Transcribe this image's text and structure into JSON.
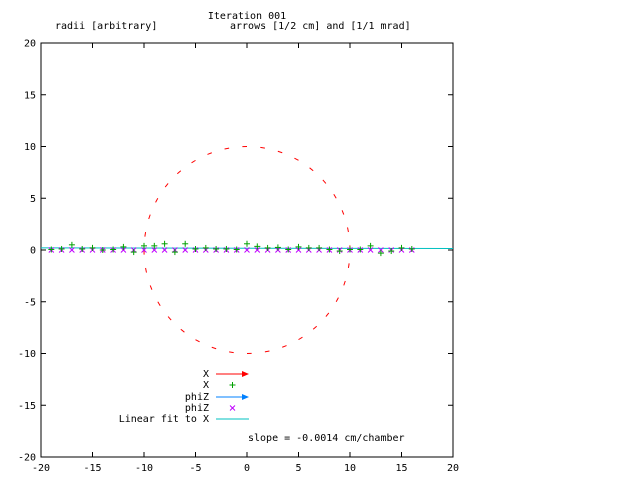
{
  "chart_data": {
    "type": "scatter",
    "title": "Iteration 001",
    "subtitle_left": "radii [arbitrary]",
    "subtitle_right": "arrows [1/2 cm] and [1/1 mrad]",
    "xlim": [
      -20,
      20
    ],
    "ylim": [
      -20,
      20
    ],
    "x_ticks": [
      -20,
      -15,
      -10,
      -5,
      0,
      5,
      10,
      15,
      20
    ],
    "y_ticks": [
      -20,
      -15,
      -10,
      -5,
      0,
      5,
      10,
      15,
      20
    ],
    "x_tick_labels": [
      "-20",
      "-15",
      "-10",
      "-5",
      "0",
      "5",
      "10",
      "15",
      "20"
    ],
    "y_tick_labels": [
      "-20",
      "-15",
      "-10",
      "-5",
      "0",
      "5",
      "10",
      "15",
      "20"
    ],
    "grid": false,
    "legend_placement": "bottom-left",
    "legend": [
      {
        "label": "X",
        "marker": "arrow",
        "color": "#ff0000"
      },
      {
        "label": "X",
        "marker": "plus",
        "color": "#00a000"
      },
      {
        "label": "phiZ",
        "marker": "arrow",
        "color": "#0080ff"
      },
      {
        "label": "phiZ",
        "marker": "cross",
        "color": "#c000ff"
      },
      {
        "label": "Linear fit to X",
        "marker": "line",
        "color": "#00c0c0"
      }
    ],
    "annotation": "slope = -0.0014 cm/chamber",
    "series": [
      {
        "name": "X",
        "marker": "plus",
        "color": "#00a000",
        "points": [
          [
            -19,
            0.05
          ],
          [
            -18,
            0.1
          ],
          [
            -17,
            0.5
          ],
          [
            -16,
            0.1
          ],
          [
            -15,
            0.2
          ],
          [
            -14,
            0.0
          ],
          [
            -13,
            0.05
          ],
          [
            -12,
            0.3
          ],
          [
            -11,
            -0.2
          ],
          [
            -10,
            0.4
          ],
          [
            -9,
            0.4
          ],
          [
            -8,
            0.6
          ],
          [
            -7,
            -0.2
          ],
          [
            -6,
            0.6
          ],
          [
            -5,
            0.1
          ],
          [
            -4,
            0.2
          ],
          [
            -3,
            0.1
          ],
          [
            -2,
            0.1
          ],
          [
            -1,
            0.05
          ],
          [
            0,
            0.6
          ],
          [
            1,
            0.35
          ],
          [
            2,
            0.2
          ],
          [
            3,
            0.25
          ],
          [
            4,
            0.05
          ],
          [
            5,
            0.3
          ],
          [
            6,
            0.2
          ],
          [
            7,
            0.2
          ],
          [
            8,
            0.05
          ],
          [
            9,
            -0.1
          ],
          [
            10,
            0.05
          ],
          [
            11,
            0.05
          ],
          [
            12,
            0.4
          ],
          [
            13,
            -0.3
          ],
          [
            14,
            -0.1
          ],
          [
            15,
            0.2
          ],
          [
            16,
            0.1
          ]
        ]
      },
      {
        "name": "phiZ",
        "marker": "cross",
        "color": "#c000ff",
        "points": [
          [
            -19,
            0
          ],
          [
            -18,
            0
          ],
          [
            -17,
            0
          ],
          [
            -16,
            0
          ],
          [
            -15,
            0
          ],
          [
            -14,
            0
          ],
          [
            -13,
            0
          ],
          [
            -12,
            0
          ],
          [
            -11,
            0
          ],
          [
            -10,
            0
          ],
          [
            -9,
            0
          ],
          [
            -8,
            0
          ],
          [
            -7,
            0
          ],
          [
            -6,
            0
          ],
          [
            -5,
            0
          ],
          [
            -4,
            0
          ],
          [
            -3,
            0
          ],
          [
            -2,
            0
          ],
          [
            -1,
            0
          ],
          [
            0,
            0
          ],
          [
            1,
            0
          ],
          [
            2,
            0
          ],
          [
            3,
            0
          ],
          [
            4,
            0
          ],
          [
            5,
            0
          ],
          [
            6,
            0
          ],
          [
            7,
            0
          ],
          [
            8,
            0
          ],
          [
            9,
            0
          ],
          [
            10,
            0
          ],
          [
            11,
            0
          ],
          [
            12,
            0
          ],
          [
            13,
            0
          ],
          [
            14,
            0
          ],
          [
            15,
            0
          ],
          [
            16,
            0
          ]
        ]
      },
      {
        "name": "Linear fit to X",
        "marker": "line",
        "color": "#00c0c0",
        "line": [
          [
            -20,
            0.2
          ],
          [
            20,
            0.15
          ]
        ]
      },
      {
        "name": "radius circle (red arrows)",
        "marker": "arrow-dash",
        "color": "#ff0000",
        "radius": 10,
        "count": 36
      }
    ]
  }
}
